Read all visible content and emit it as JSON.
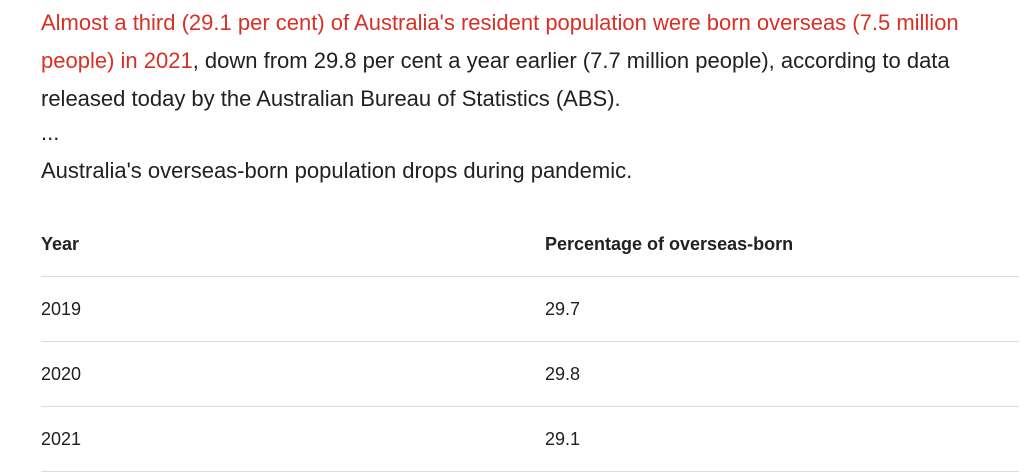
{
  "snippet": {
    "highlight": "Almost a third (29.1 per cent) of Australia's resident population were born overseas (7.5 million people) in 2021",
    "rest": ", down from 29.8 per cent a year earlier (7.7 million people), according to data released today by the Australian Bureau of Statistics (ABS).",
    "ellipsis": "...",
    "caption": "Australia's overseas-born population drops during pandemic."
  },
  "table": {
    "headers": [
      "Year",
      "Percentage of overseas-born"
    ],
    "rows": [
      [
        "2019",
        "29.7"
      ],
      [
        "2020",
        "29.8"
      ],
      [
        "2021",
        "29.1"
      ]
    ]
  },
  "colors": {
    "highlight": "#d93025",
    "text": "#202124",
    "divider": "#dadce0"
  }
}
